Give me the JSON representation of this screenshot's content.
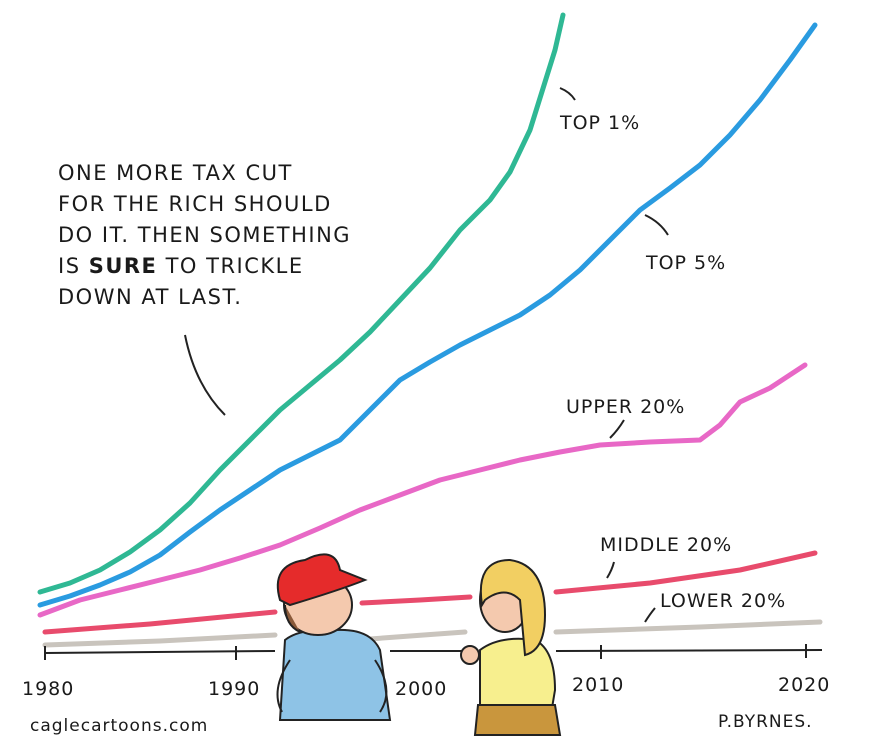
{
  "speech": {
    "line1": "One more tax cut",
    "line2": "for the rich should",
    "line3": "do it. Then something",
    "line4_pre": "is ",
    "line4_bold": "SURE",
    "line4_post": " to trickle",
    "line5": "down at last."
  },
  "series_labels": {
    "top1": "Top 1%",
    "top5": "Top 5%",
    "upper20": "Upper 20%",
    "middle20": "Middle 20%",
    "lower20": "Lower 20%"
  },
  "years": [
    "1980",
    "1990",
    "2000",
    "2010",
    "2020"
  ],
  "colors": {
    "top1": "#2fb894",
    "top5": "#2a9be0",
    "upper20": "#e868c6",
    "middle20": "#e84b6c",
    "lower20": "#c9c4bd"
  },
  "credits": {
    "site": "caglecartoons.com",
    "artist": "P.BYRNES."
  }
}
